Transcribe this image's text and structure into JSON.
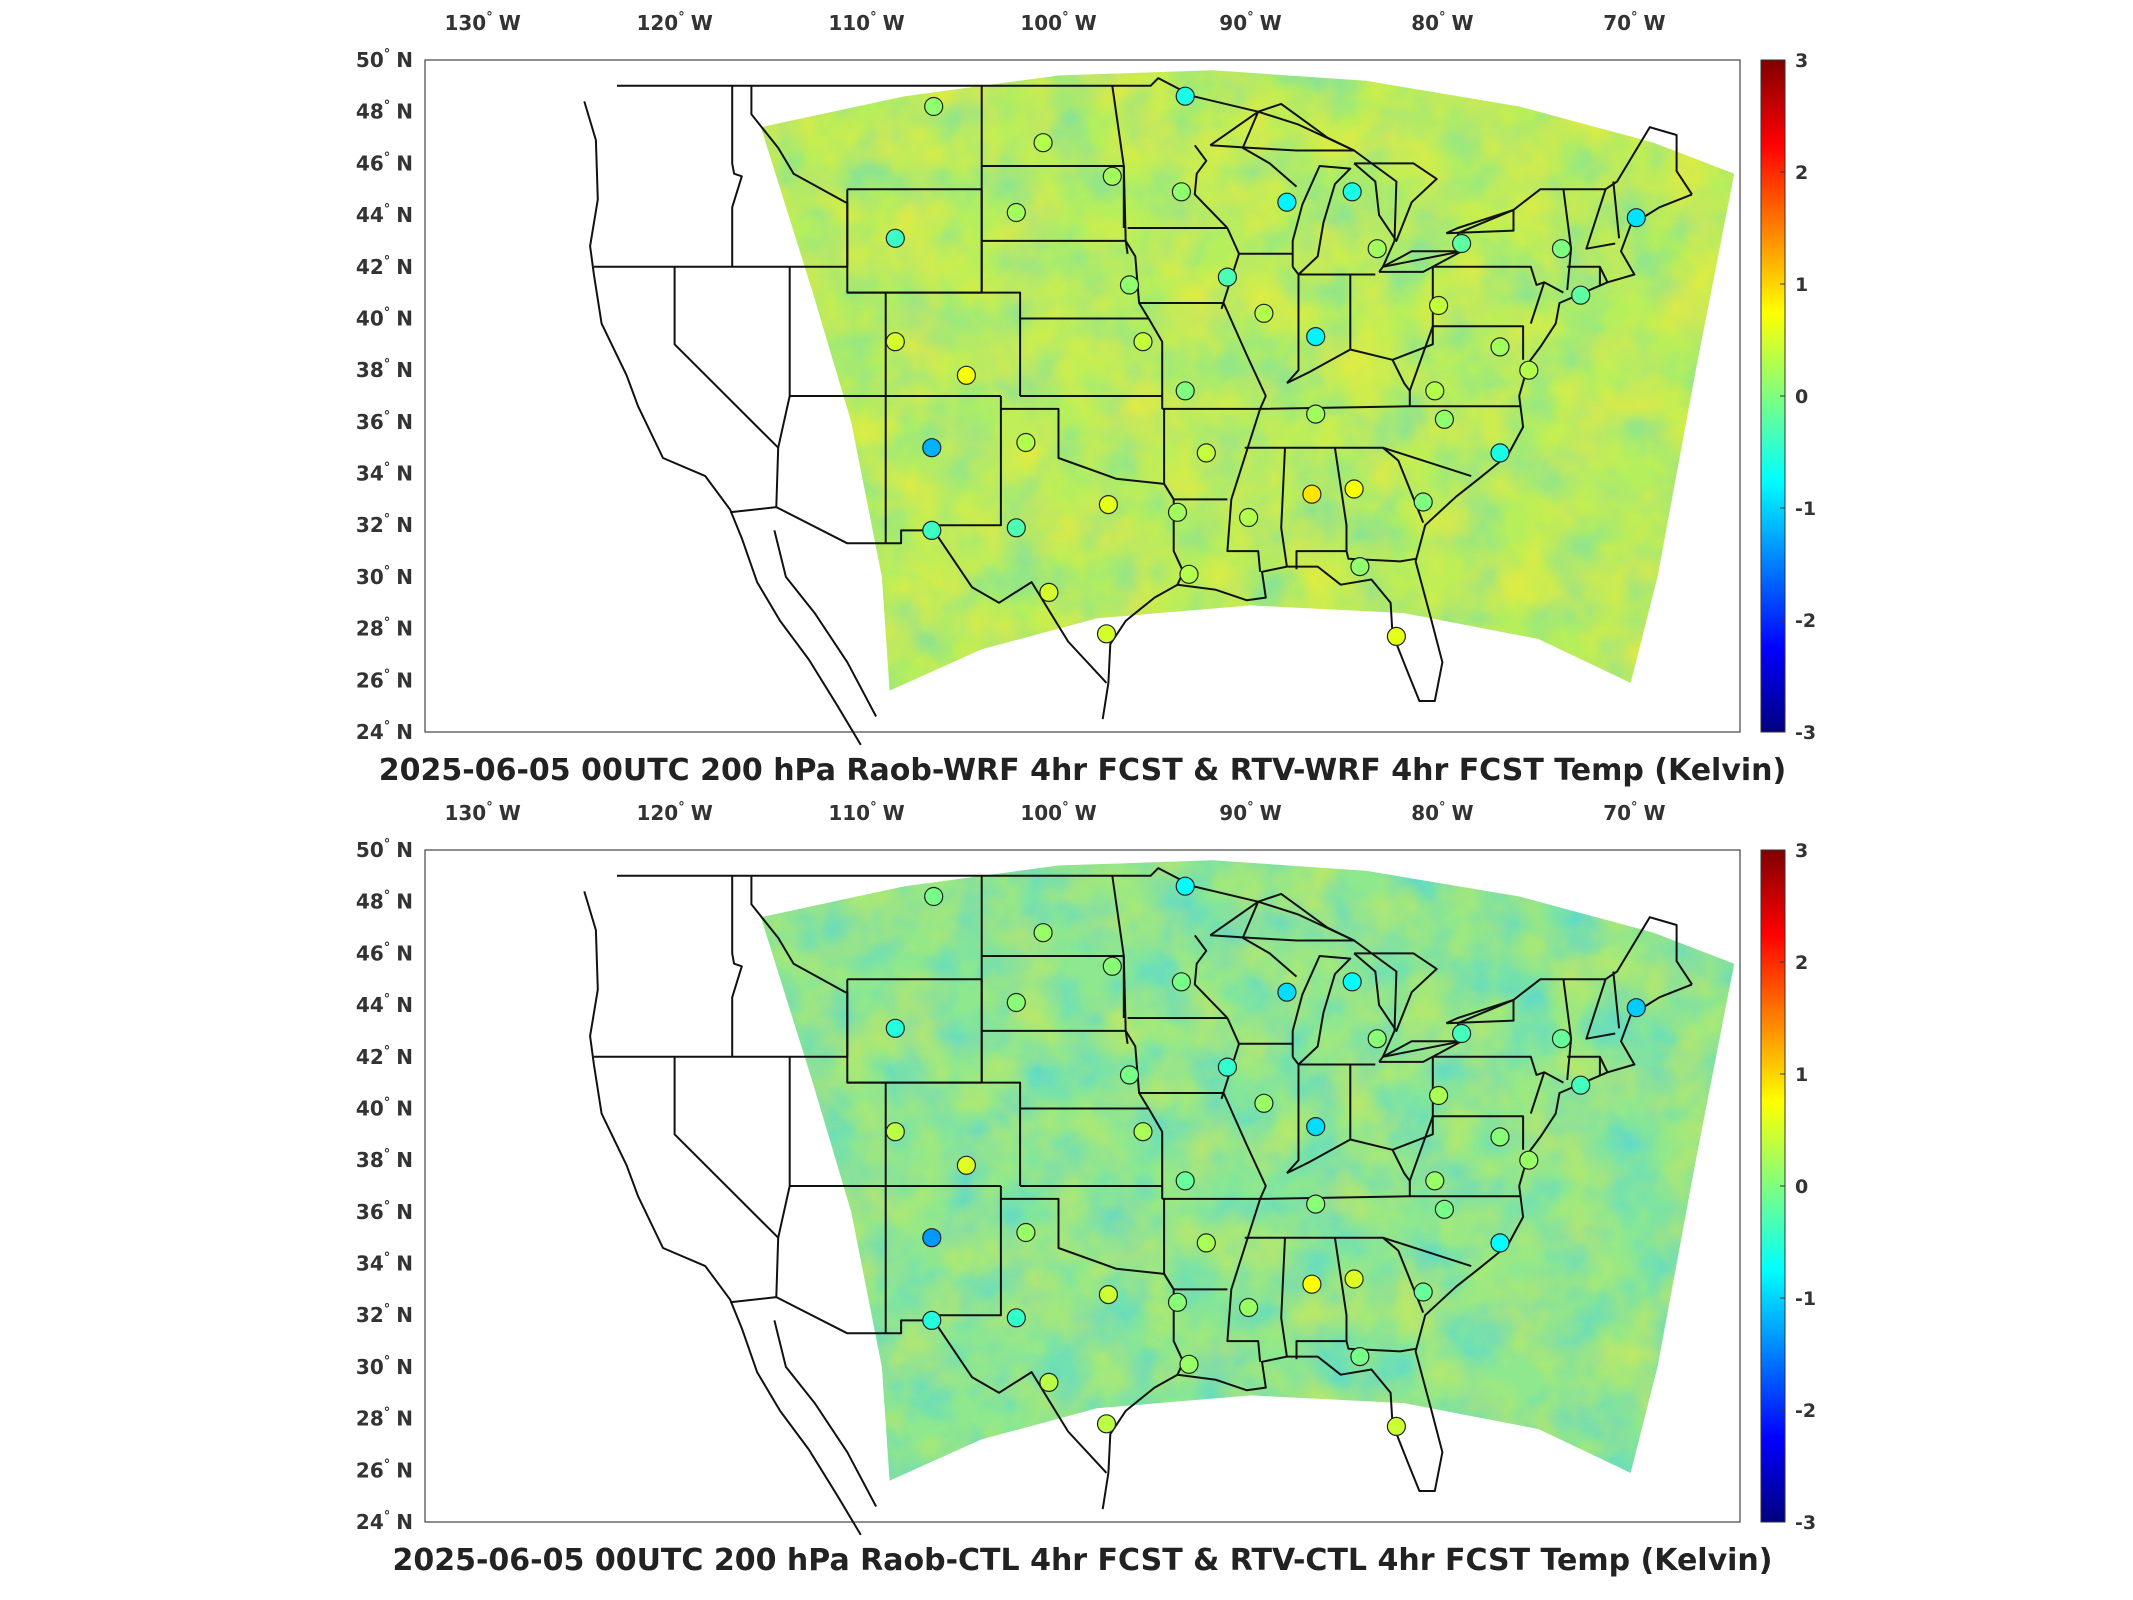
{
  "figure": {
    "domain": "Map",
    "panels": [
      {
        "title": "2025-06-05 00UTC 200 hPa Raob-WRF 4hr FCST & RTV-WRF 4hr FCST Temp (Kelvin)",
        "field_tone": "warm"
      },
      {
        "title": "2025-06-05 00UTC 200 hPa Raob-CTL 4hr FCST & RTV-CTL 4hr FCST Temp (Kelvin)",
        "field_tone": "cool"
      }
    ],
    "lon_ticks": [
      {
        "deg": "130",
        "hemi": "W"
      },
      {
        "deg": "120",
        "hemi": "W"
      },
      {
        "deg": "110",
        "hemi": "W"
      },
      {
        "deg": "100",
        "hemi": "W"
      },
      {
        "deg": "90",
        "hemi": "W"
      },
      {
        "deg": "80",
        "hemi": "W"
      },
      {
        "deg": "70",
        "hemi": "W"
      }
    ],
    "lat_ticks": [
      {
        "deg": "50",
        "hemi": "N"
      },
      {
        "deg": "48",
        "hemi": "N"
      },
      {
        "deg": "46",
        "hemi": "N"
      },
      {
        "deg": "44",
        "hemi": "N"
      },
      {
        "deg": "42",
        "hemi": "N"
      },
      {
        "deg": "40",
        "hemi": "N"
      },
      {
        "deg": "38",
        "hemi": "N"
      },
      {
        "deg": "36",
        "hemi": "N"
      },
      {
        "deg": "34",
        "hemi": "N"
      },
      {
        "deg": "32",
        "hemi": "N"
      },
      {
        "deg": "30",
        "hemi": "N"
      },
      {
        "deg": "28",
        "hemi": "N"
      },
      {
        "deg": "26",
        "hemi": "N"
      },
      {
        "deg": "24",
        "hemi": "N"
      }
    ],
    "colorbar": {
      "min": -3,
      "max": 3,
      "ticks": [
        "3",
        "2",
        "1",
        "0",
        "-1",
        "-2",
        "-3"
      ],
      "colormap": [
        "#00007f",
        "#0000ff",
        "#007fff",
        "#00ffff",
        "#7fff7f",
        "#ffff00",
        "#ff7f00",
        "#ff0000",
        "#7f0000"
      ]
    },
    "raob_stations": [
      {
        "lon": -106.5,
        "lat": 48.2,
        "value": 0.1
      },
      {
        "lon": -93.4,
        "lat": 48.6,
        "value": -0.6
      },
      {
        "lon": -100.8,
        "lat": 46.8,
        "value": 0.3
      },
      {
        "lon": -97.2,
        "lat": 45.5,
        "value": 0.2
      },
      {
        "lon": -93.6,
        "lat": 44.9,
        "value": 0.1
      },
      {
        "lon": -102.2,
        "lat": 44.1,
        "value": 0.2
      },
      {
        "lon": -88.1,
        "lat": 44.5,
        "value": -0.8
      },
      {
        "lon": -84.7,
        "lat": 44.9,
        "value": -0.6
      },
      {
        "lon": -69.9,
        "lat": 43.9,
        "value": -0.9
      },
      {
        "lon": -108.5,
        "lat": 43.1,
        "value": -0.4
      },
      {
        "lon": -83.4,
        "lat": 42.7,
        "value": 0.2
      },
      {
        "lon": -73.8,
        "lat": 42.7,
        "value": 0.0
      },
      {
        "lon": -79.0,
        "lat": 42.9,
        "value": -0.2
      },
      {
        "lon": -91.2,
        "lat": 41.6,
        "value": -0.3
      },
      {
        "lon": -96.3,
        "lat": 41.3,
        "value": 0.1
      },
      {
        "lon": -80.2,
        "lat": 40.5,
        "value": 0.4
      },
      {
        "lon": -72.8,
        "lat": 40.9,
        "value": -0.2
      },
      {
        "lon": -89.3,
        "lat": 40.2,
        "value": 0.3
      },
      {
        "lon": -108.5,
        "lat": 39.1,
        "value": 0.5
      },
      {
        "lon": -95.6,
        "lat": 39.1,
        "value": 0.4
      },
      {
        "lon": -86.6,
        "lat": 39.3,
        "value": -0.8
      },
      {
        "lon": -77.0,
        "lat": 38.9,
        "value": 0.2
      },
      {
        "lon": -75.5,
        "lat": 38.0,
        "value": 0.3
      },
      {
        "lon": -104.8,
        "lat": 37.8,
        "value": 0.7
      },
      {
        "lon": -93.4,
        "lat": 37.2,
        "value": 0.0
      },
      {
        "lon": -80.4,
        "lat": 37.2,
        "value": 0.3
      },
      {
        "lon": -86.6,
        "lat": 36.3,
        "value": 0.2
      },
      {
        "lon": -79.9,
        "lat": 36.1,
        "value": 0.1
      },
      {
        "lon": -106.6,
        "lat": 35.0,
        "value": -1.2
      },
      {
        "lon": -101.7,
        "lat": 35.2,
        "value": 0.3
      },
      {
        "lon": -92.3,
        "lat": 34.8,
        "value": 0.4
      },
      {
        "lon": -77.0,
        "lat": 34.8,
        "value": -0.6
      },
      {
        "lon": -97.4,
        "lat": 32.8,
        "value": 0.6
      },
      {
        "lon": -86.8,
        "lat": 33.2,
        "value": 0.9
      },
      {
        "lon": -84.6,
        "lat": 33.4,
        "value": 0.7
      },
      {
        "lon": -81.0,
        "lat": 32.9,
        "value": 0.0
      },
      {
        "lon": -93.8,
        "lat": 32.5,
        "value": 0.2
      },
      {
        "lon": -90.1,
        "lat": 32.3,
        "value": 0.3
      },
      {
        "lon": -106.6,
        "lat": 31.8,
        "value": -0.4
      },
      {
        "lon": -102.2,
        "lat": 31.9,
        "value": -0.3
      },
      {
        "lon": -100.5,
        "lat": 29.4,
        "value": 0.5
      },
      {
        "lon": -93.2,
        "lat": 30.1,
        "value": 0.3
      },
      {
        "lon": -84.3,
        "lat": 30.4,
        "value": 0.1
      },
      {
        "lon": -97.5,
        "lat": 27.8,
        "value": 0.5
      },
      {
        "lon": -82.4,
        "lat": 27.7,
        "value": 0.6
      }
    ]
  }
}
